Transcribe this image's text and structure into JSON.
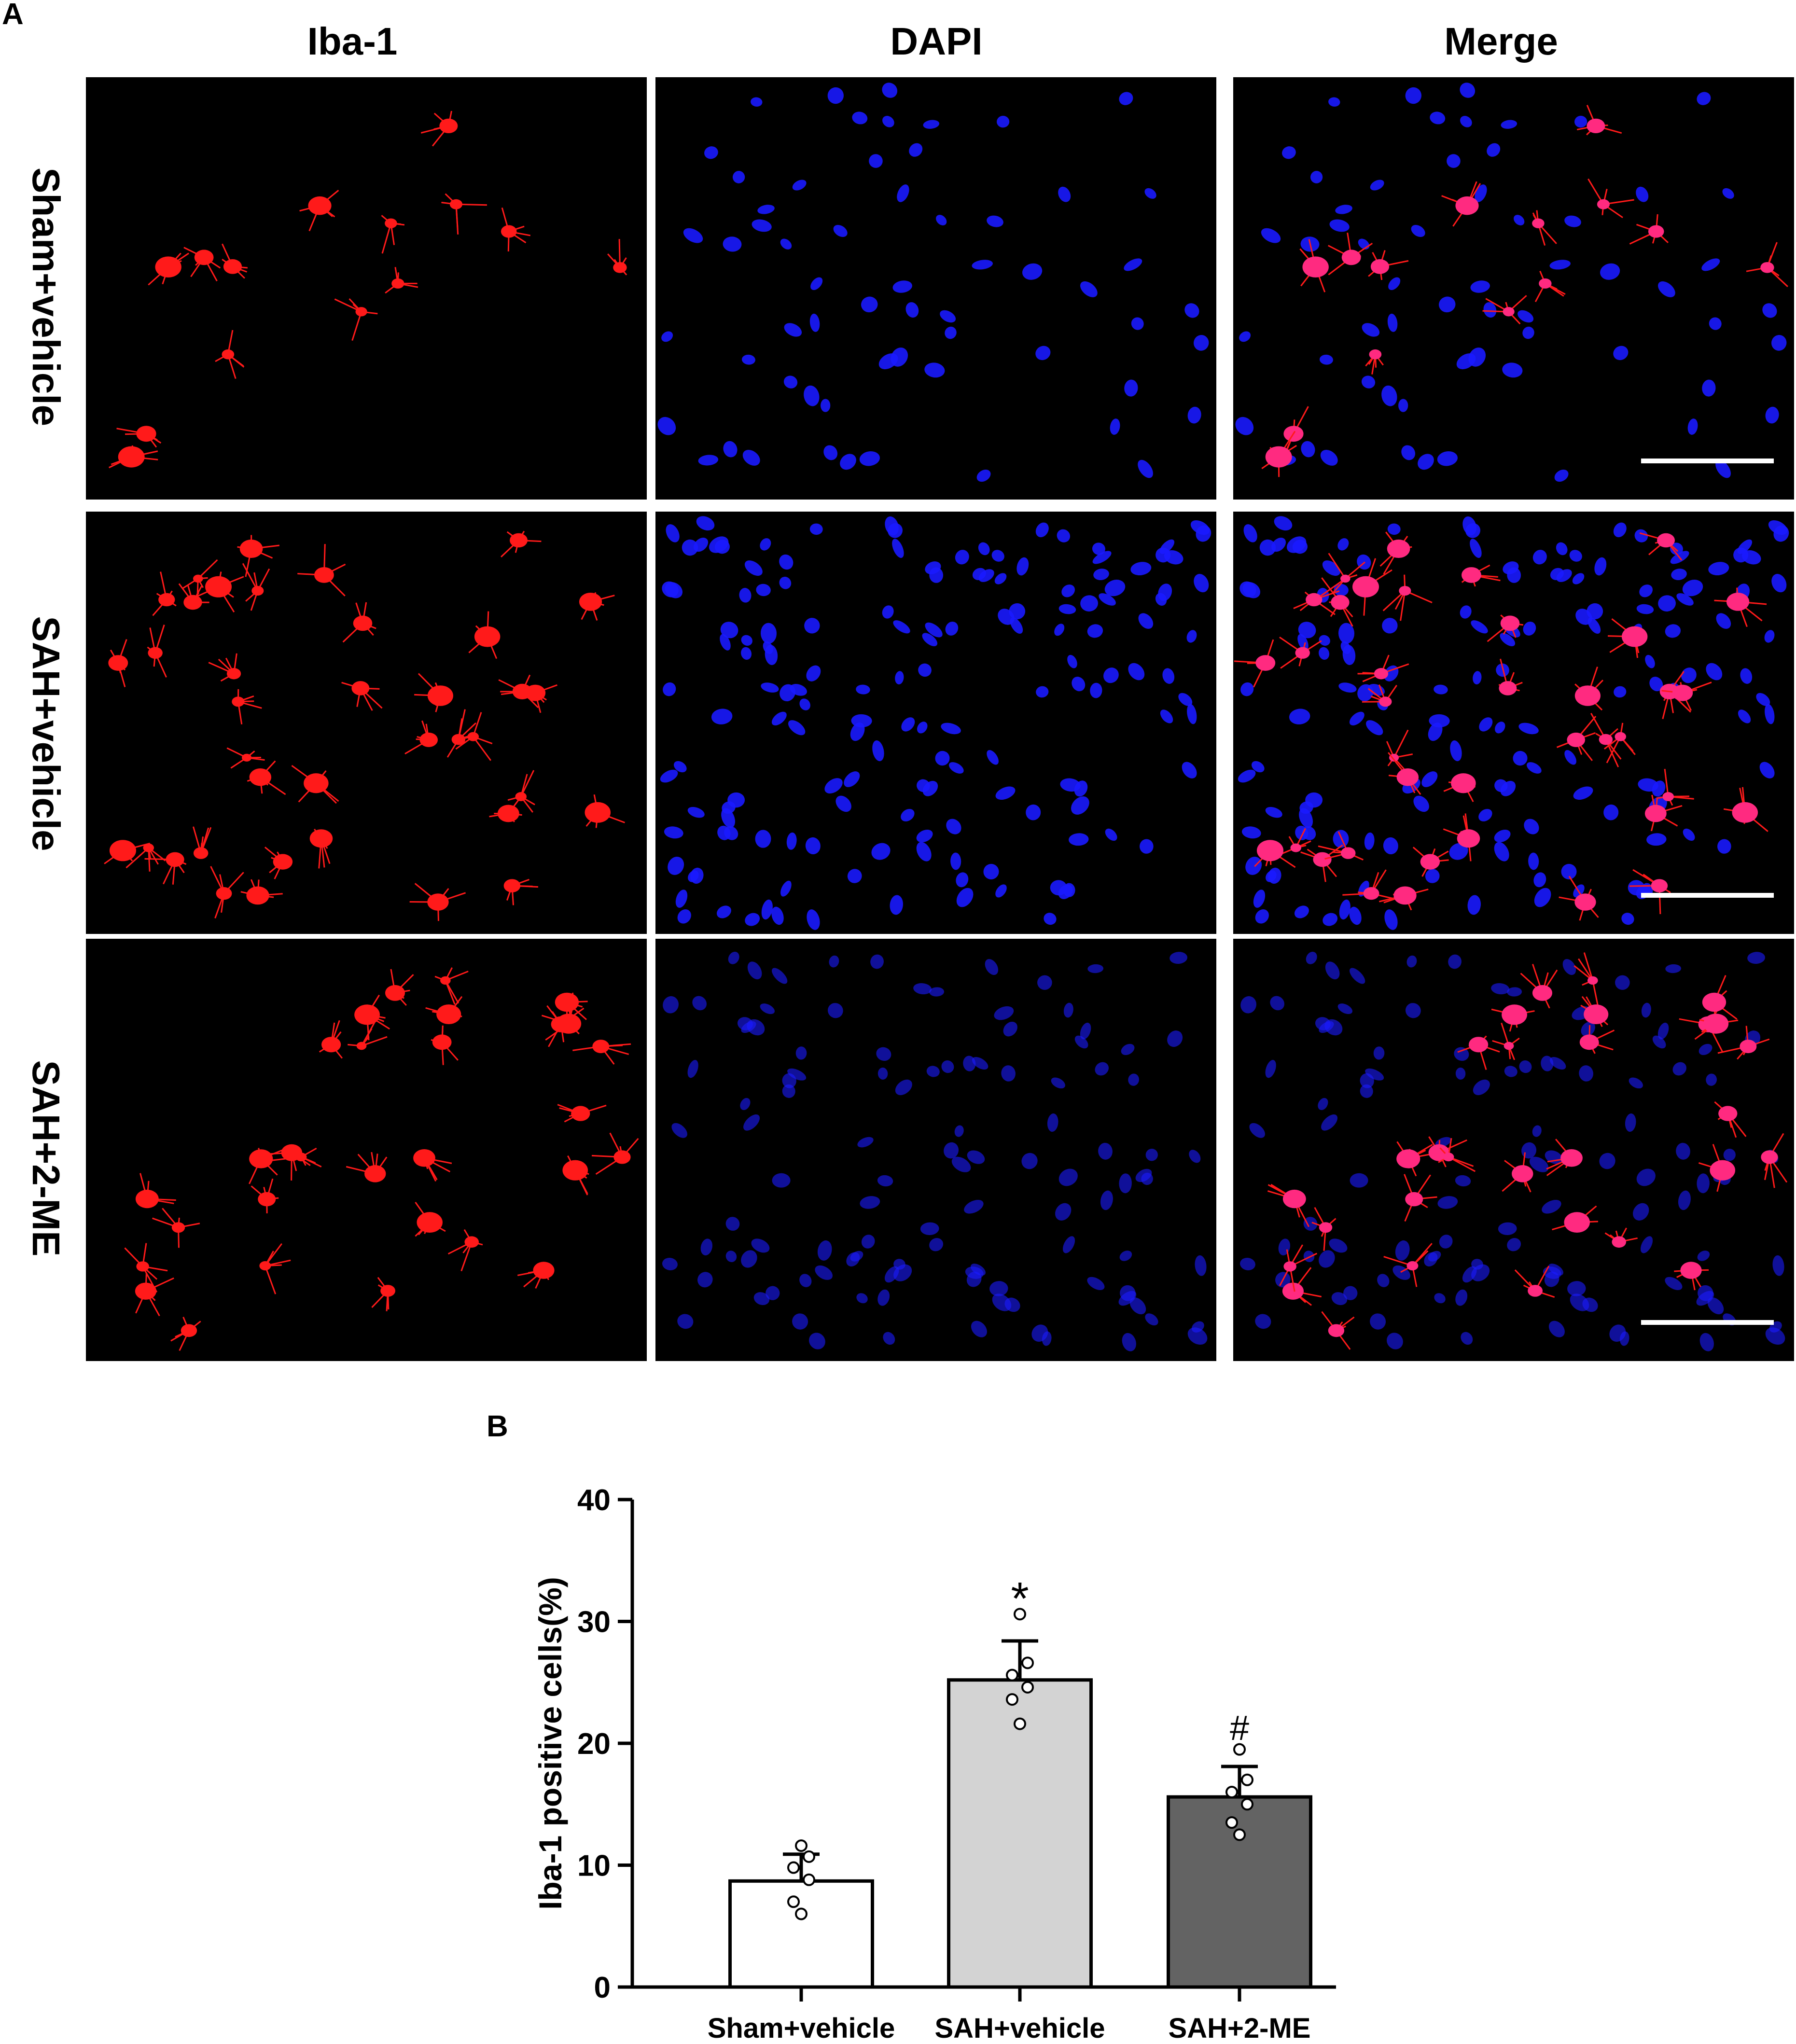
{
  "panel_a": {
    "label": "A",
    "columns": [
      "Iba-1",
      "DAPI",
      "Merge"
    ],
    "rows": [
      "Sham+vehicle",
      "SAH+vehicle",
      "SAH+2-ME"
    ],
    "colors": {
      "iba1": "#ff1a1a",
      "dapi": "#1a1aff",
      "merge": "#ff2a80",
      "background": "#000000",
      "scale_bar": "#ffffff"
    }
  },
  "panel_b": {
    "label": "B"
  },
  "chart_data": {
    "type": "bar",
    "categories": [
      "Sham+vehicle",
      "SAH+vehicle",
      "SAH+2-ME"
    ],
    "values": [
      8.7,
      25.2,
      15.6
    ],
    "errors": [
      2.2,
      3.2,
      2.5
    ],
    "points": [
      [
        11.6,
        10.7,
        9.8,
        8.8,
        7.0,
        6.0
      ],
      [
        30.6,
        26.6,
        25.6,
        24.6,
        23.6,
        21.6
      ],
      [
        19.5,
        17.0,
        16.0,
        15.0,
        13.5,
        12.5
      ]
    ],
    "significance": [
      "",
      "*",
      "#"
    ],
    "ylabel": "Iba-1 positive cells(%)",
    "yticks": [
      0,
      10,
      20,
      30,
      40
    ],
    "ylim": [
      0,
      40
    ],
    "bar_colors": [
      "#ffffff",
      "#d3d3d3",
      "#636363"
    ]
  }
}
